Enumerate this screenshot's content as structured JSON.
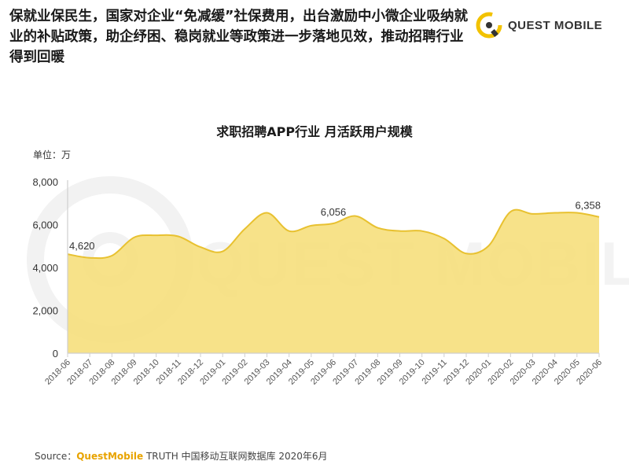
{
  "headline": "保就业保民生，国家对企业“免减缓”社保费用，出台激励中小微企业吸纳就业的补贴政策，助企纾困、稳岗就业等政策进一步落地见效，推动招聘行业得到回暖",
  "logo": {
    "text": "QUEST MOBILE"
  },
  "watermark": "QUEST MOBILE",
  "chart_data": {
    "type": "area",
    "title": "求职招聘APP行业 月活跃用户规模",
    "unit_label": "单位：万",
    "x": [
      "2018-06",
      "2018-07",
      "2018-08",
      "2018-09",
      "2018-10",
      "2018-11",
      "2018-12",
      "2019-01",
      "2019-02",
      "2019-03",
      "2019-04",
      "2019-05",
      "2019-06",
      "2019-07",
      "2019-08",
      "2019-09",
      "2019-10",
      "2019-11",
      "2019-12",
      "2020-01",
      "2020-02",
      "2020-03",
      "2020-04",
      "2020-05",
      "2020-06"
    ],
    "y_tick_labels": [
      "0",
      "2,000",
      "4,000",
      "6,000",
      "8,000"
    ],
    "ylim": [
      0,
      8000
    ],
    "series": [
      {
        "values": [
          4620,
          4450,
          4550,
          5400,
          5500,
          5450,
          4950,
          4750,
          5800,
          6550,
          5700,
          5950,
          6056,
          6400,
          5850,
          5700,
          5700,
          5350,
          4650,
          5000,
          6600,
          6500,
          6550,
          6550,
          6358
        ]
      }
    ],
    "annotations": [
      {
        "index": 0,
        "label": "4,620"
      },
      {
        "index": 12,
        "label": "6,056"
      },
      {
        "index": 24,
        "label": "6,358"
      }
    ],
    "fill_color": "#f6df7c",
    "line_color": "#e8c130",
    "axis_color": "#cfcfcf",
    "grid": false
  },
  "source": {
    "prefix": "Source：",
    "brand": "QuestMobile",
    "rest": " TRUTH 中国移动互联网数据库 2020年6月"
  }
}
